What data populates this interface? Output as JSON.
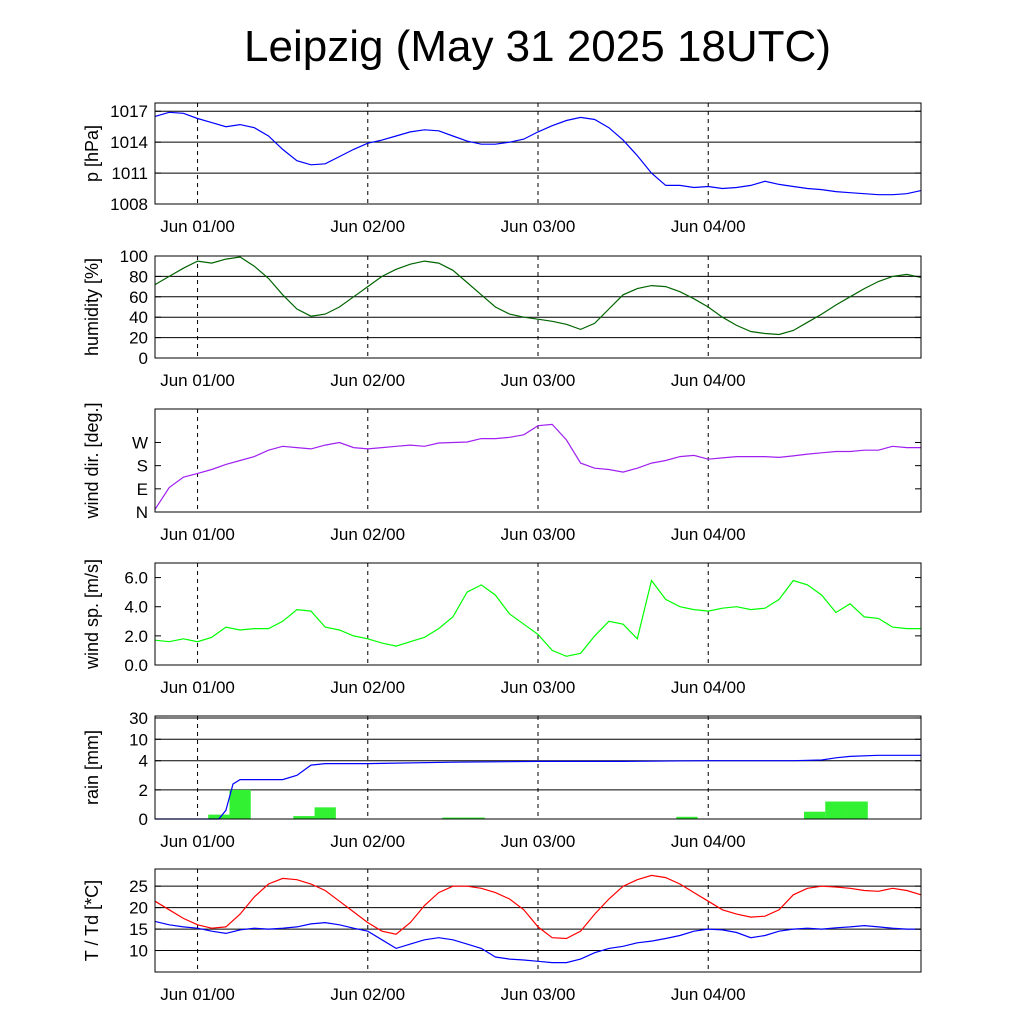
{
  "title": "Leipzig (May 31 2025 18UTC)",
  "colors": {
    "pressure": "#0000ff",
    "humidity": "#006400",
    "wind_dir": "#a020f0",
    "wind_speed": "#00ff00",
    "rain_total": "#0000ff",
    "rain_bar": "#32f032",
    "temperature": "#ff0000",
    "dewpoint": "#0000ff"
  },
  "chart_data": [
    {
      "type": "line",
      "ylabel": "p [hPa]",
      "ylim": [
        1008,
        1017.8
      ],
      "yticks": [
        1008,
        1011,
        1014,
        1017
      ],
      "ytick_labels": [
        "1008",
        "1011",
        "1014",
        "1017"
      ],
      "grid": true,
      "xlim": [
        -6,
        102
      ],
      "xticks": [
        0,
        24,
        48,
        72
      ],
      "xtick_labels": [
        "Jun 01/00",
        "Jun 02/00",
        "Jun 03/00",
        "Jun 04/00"
      ],
      "series": [
        {
          "color_key": "pressure",
          "x": [
            -6,
            -4,
            -2,
            0,
            2,
            4,
            6,
            8,
            10,
            12,
            14,
            16,
            18,
            20,
            22,
            24,
            26,
            28,
            30,
            32,
            34,
            36,
            38,
            40,
            42,
            44,
            46,
            48,
            50,
            52,
            54,
            56,
            58,
            60,
            62,
            64,
            66,
            68,
            70,
            72,
            74,
            76,
            78,
            80,
            82,
            84,
            86,
            88,
            90,
            92,
            94,
            96,
            98,
            100,
            102
          ],
          "y": [
            1016.5,
            1016.9,
            1016.8,
            1016.3,
            1015.9,
            1015.5,
            1015.7,
            1015.4,
            1014.6,
            1013.3,
            1012.2,
            1011.8,
            1011.9,
            1012.6,
            1013.3,
            1013.9,
            1014.2,
            1014.6,
            1015.0,
            1015.2,
            1015.1,
            1014.6,
            1014.1,
            1013.8,
            1013.8,
            1014.0,
            1014.3,
            1015.0,
            1015.6,
            1016.1,
            1016.4,
            1016.2,
            1015.4,
            1014.2,
            1012.7,
            1011.0,
            1009.8,
            1009.8,
            1009.6,
            1009.7,
            1009.5,
            1009.6,
            1009.8,
            1010.2,
            1009.9,
            1009.7,
            1009.5,
            1009.4,
            1009.2,
            1009.1,
            1009.0,
            1008.9,
            1008.9,
            1009.0,
            1009.3
          ]
        }
      ]
    },
    {
      "type": "line",
      "ylabel": "humidity [%]",
      "ylim": [
        0,
        100
      ],
      "yticks": [
        0,
        20,
        40,
        60,
        80,
        100
      ],
      "ytick_labels": [
        "0",
        "20",
        "40",
        "60",
        "80",
        "100"
      ],
      "grid": true,
      "xlim": [
        -6,
        102
      ],
      "xticks": [
        0,
        24,
        48,
        72
      ],
      "xtick_labels": [
        "Jun 01/00",
        "Jun 02/00",
        "Jun 03/00",
        "Jun 04/00"
      ],
      "series": [
        {
          "color_key": "humidity",
          "x": [
            -6,
            -4,
            -2,
            0,
            2,
            4,
            6,
            8,
            10,
            12,
            14,
            16,
            18,
            20,
            22,
            24,
            26,
            28,
            30,
            32,
            34,
            36,
            38,
            40,
            42,
            44,
            46,
            48,
            50,
            52,
            54,
            56,
            58,
            60,
            62,
            64,
            66,
            68,
            70,
            72,
            74,
            76,
            78,
            80,
            82,
            84,
            86,
            88,
            90,
            92,
            94,
            96,
            98,
            100,
            102
          ],
          "y": [
            72,
            80,
            88,
            95,
            93,
            97,
            99,
            90,
            78,
            62,
            48,
            41,
            43,
            50,
            60,
            70,
            80,
            87,
            92,
            95,
            93,
            86,
            74,
            62,
            50,
            43,
            40,
            38,
            36,
            33,
            28,
            34,
            48,
            62,
            68,
            71,
            70,
            65,
            58,
            50,
            40,
            32,
            26,
            24,
            23,
            27,
            35,
            43,
            52,
            60,
            68,
            75,
            80,
            82,
            79
          ]
        }
      ]
    },
    {
      "type": "line",
      "ylabel": "wind dir. [deg.]",
      "ylim": [
        0,
        400
      ],
      "yticks": [
        0,
        90,
        180,
        270
      ],
      "ytick_labels": [
        "N",
        "E",
        "S",
        "W"
      ],
      "grid": false,
      "xlim": [
        -6,
        102
      ],
      "xticks": [
        0,
        24,
        48,
        72
      ],
      "xtick_labels": [
        "Jun 01/00",
        "Jun 02/00",
        "Jun 03/00",
        "Jun 04/00"
      ],
      "series": [
        {
          "color_key": "wind_dir",
          "x": [
            -6,
            -4,
            -2,
            0,
            2,
            4,
            6,
            8,
            10,
            12,
            14,
            16,
            18,
            20,
            22,
            24,
            26,
            28,
            30,
            32,
            34,
            36,
            38,
            40,
            42,
            44,
            46,
            48,
            50,
            52,
            54,
            56,
            58,
            60,
            62,
            64,
            66,
            68,
            70,
            72,
            74,
            76,
            78,
            80,
            82,
            84,
            86,
            88,
            90,
            92,
            94,
            96,
            98,
            100,
            102
          ],
          "y": [
            10,
            95,
            135,
            150,
            165,
            185,
            200,
            215,
            240,
            255,
            250,
            245,
            260,
            270,
            250,
            245,
            250,
            255,
            260,
            255,
            268,
            270,
            272,
            285,
            285,
            290,
            300,
            335,
            340,
            280,
            190,
            170,
            165,
            155,
            170,
            190,
            200,
            215,
            220,
            205,
            210,
            215,
            215,
            215,
            212,
            218,
            225,
            230,
            235,
            235,
            240,
            240,
            255,
            250,
            250
          ]
        }
      ]
    },
    {
      "type": "line",
      "ylabel": "wind sp. [m/s]",
      "ylim": [
        0,
        7.0
      ],
      "yticks": [
        0,
        2,
        4,
        6
      ],
      "ytick_labels": [
        "0.0",
        "2.0",
        "4.0",
        "6.0"
      ],
      "grid": false,
      "xlim": [
        -6,
        102
      ],
      "xticks": [
        0,
        24,
        48,
        72
      ],
      "xtick_labels": [
        "Jun 01/00",
        "Jun 02/00",
        "Jun 03/00",
        "Jun 04/00"
      ],
      "series": [
        {
          "color_key": "wind_speed",
          "x": [
            -6,
            -4,
            -2,
            0,
            2,
            4,
            6,
            8,
            10,
            12,
            14,
            16,
            18,
            20,
            22,
            24,
            26,
            28,
            30,
            32,
            34,
            36,
            38,
            40,
            42,
            44,
            46,
            48,
            50,
            52,
            54,
            56,
            58,
            60,
            62,
            64,
            66,
            68,
            70,
            72,
            74,
            76,
            78,
            80,
            82,
            84,
            86,
            88,
            90,
            92,
            94,
            96,
            98,
            100,
            102
          ],
          "y": [
            1.7,
            1.6,
            1.8,
            1.6,
            1.9,
            2.6,
            2.4,
            2.5,
            2.5,
            3.0,
            3.8,
            3.7,
            2.6,
            2.4,
            2.0,
            1.8,
            1.5,
            1.3,
            1.6,
            1.9,
            2.5,
            3.3,
            5.0,
            5.5,
            4.8,
            3.5,
            2.8,
            2.1,
            1.0,
            0.6,
            0.8,
            2.0,
            3.0,
            2.8,
            1.8,
            5.8,
            4.5,
            4.0,
            3.8,
            3.7,
            3.9,
            4.0,
            3.8,
            3.9,
            4.5,
            5.8,
            5.5,
            4.8,
            3.6,
            4.2,
            3.3,
            3.2,
            2.6,
            2.5,
            2.5
          ]
        }
      ]
    },
    {
      "type": "bar+line",
      "ylabel": "rain [mm]",
      "ylim": [
        0,
        34
      ],
      "yticks": [
        0,
        2,
        4,
        10,
        30
      ],
      "ytick_labels": [
        "0",
        "2",
        "4",
        "10",
        "30"
      ],
      "grid": true,
      "xlim": [
        -6,
        102
      ],
      "xticks": [
        0,
        24,
        48,
        72
      ],
      "xtick_labels": [
        "Jun 01/00",
        "Jun 02/00",
        "Jun 03/00",
        "Jun 04/00"
      ],
      "bars": {
        "color_key": "rain_bar",
        "x_start": [
          1.5,
          4.5,
          13.5,
          16.5,
          34.5,
          37.5,
          67.5,
          85.5,
          88.5,
          91.5
        ],
        "x_end": [
          4.5,
          7.5,
          16.5,
          19.5,
          37.5,
          40.5,
          70.5,
          88.5,
          91.5,
          94.5
        ],
        "values": [
          0.3,
          2.0,
          0.2,
          0.8,
          0.1,
          0.1,
          0.15,
          0.5,
          1.2,
          1.2
        ]
      },
      "series": [
        {
          "color_key": "rain_total",
          "x": [
            -6,
            0,
            3,
            4,
            5,
            6,
            12,
            14,
            16,
            18,
            24,
            36,
            48,
            60,
            72,
            84,
            88,
            90,
            92,
            96,
            102
          ],
          "y": [
            0,
            0,
            0,
            0.6,
            2.4,
            2.7,
            2.7,
            3.0,
            3.7,
            3.8,
            3.8,
            3.9,
            3.95,
            3.95,
            4.0,
            4.0,
            4.2,
            4.8,
            5.2,
            5.5,
            5.5
          ]
        }
      ]
    },
    {
      "type": "line",
      "ylabel": "T / Td [*C]",
      "ylim": [
        5,
        29
      ],
      "yticks": [
        10,
        15,
        20,
        25
      ],
      "ytick_labels": [
        "10",
        "15",
        "20",
        "25"
      ],
      "grid": true,
      "xlim": [
        -6,
        102
      ],
      "xticks": [
        0,
        24,
        48,
        72
      ],
      "xtick_labels": [
        "Jun 01/00",
        "Jun 02/00",
        "Jun 03/00",
        "Jun 04/00"
      ],
      "series": [
        {
          "color_key": "temperature",
          "x": [
            -6,
            -4,
            -2,
            0,
            2,
            4,
            6,
            8,
            10,
            12,
            14,
            16,
            18,
            20,
            22,
            24,
            26,
            28,
            30,
            32,
            34,
            36,
            38,
            40,
            42,
            44,
            46,
            48,
            50,
            52,
            54,
            56,
            58,
            60,
            62,
            64,
            66,
            68,
            70,
            72,
            74,
            76,
            78,
            80,
            82,
            84,
            86,
            88,
            90,
            92,
            94,
            96,
            98,
            100,
            102
          ],
          "y": [
            21.5,
            19.5,
            17.5,
            16.0,
            15.2,
            15.5,
            18.5,
            22.5,
            25.5,
            26.8,
            26.5,
            25.5,
            24.0,
            21.5,
            19.0,
            16.5,
            14.5,
            13.8,
            16.5,
            20.5,
            23.5,
            25.0,
            25.0,
            24.5,
            23.5,
            22.0,
            19.5,
            15.5,
            13.0,
            12.8,
            14.5,
            18.5,
            22.0,
            25.0,
            26.5,
            27.5,
            27.0,
            25.5,
            23.5,
            21.5,
            19.5,
            18.5,
            17.8,
            18.0,
            19.5,
            23.0,
            24.5,
            25.0,
            24.8,
            24.5,
            24.0,
            23.8,
            24.5,
            24.0,
            23.0
          ]
        },
        {
          "color_key": "dewpoint",
          "x": [
            -6,
            -4,
            -2,
            0,
            2,
            4,
            6,
            8,
            10,
            12,
            14,
            16,
            18,
            20,
            22,
            24,
            26,
            28,
            30,
            32,
            34,
            36,
            38,
            40,
            42,
            44,
            46,
            48,
            50,
            52,
            54,
            56,
            58,
            60,
            62,
            64,
            66,
            68,
            70,
            72,
            74,
            76,
            78,
            80,
            82,
            84,
            86,
            88,
            90,
            92,
            94,
            96,
            98,
            100,
            102
          ],
          "y": [
            16.8,
            16.0,
            15.5,
            15.2,
            14.5,
            14.0,
            14.8,
            15.2,
            15.0,
            15.2,
            15.5,
            16.2,
            16.5,
            16.0,
            15.2,
            14.5,
            12.5,
            10.5,
            11.5,
            12.5,
            13.0,
            12.5,
            11.5,
            10.5,
            8.5,
            8.0,
            7.8,
            7.5,
            7.2,
            7.2,
            8.0,
            9.5,
            10.5,
            11.0,
            11.8,
            12.2,
            12.8,
            13.5,
            14.5,
            15.0,
            14.8,
            14.2,
            13.0,
            13.5,
            14.5,
            15.0,
            15.2,
            15.0,
            15.3,
            15.5,
            15.8,
            15.5,
            15.2,
            15.0,
            15.0
          ]
        }
      ]
    }
  ]
}
